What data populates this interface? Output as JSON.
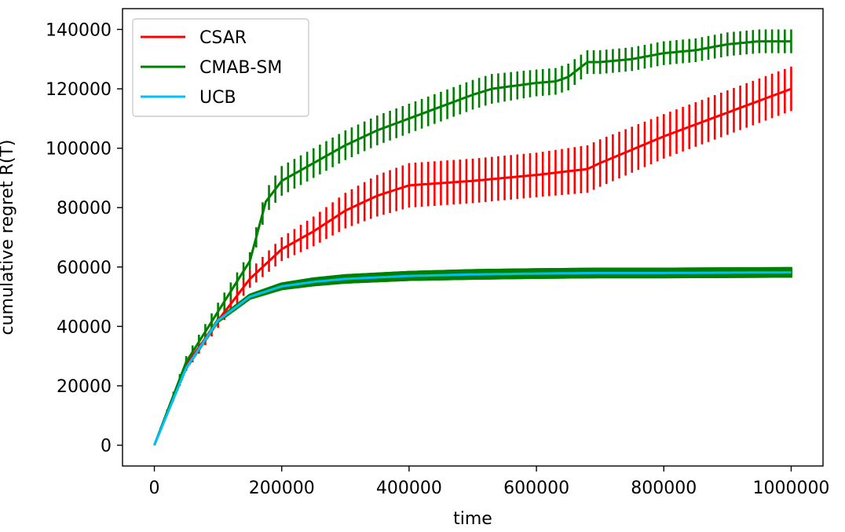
{
  "chart_data": {
    "type": "line",
    "title": "",
    "xlabel": "time",
    "ylabel": "cumulative regret R(T)",
    "xlim": [
      -50000,
      1050000
    ],
    "ylim": [
      -7000,
      147000
    ],
    "xticks": [
      0,
      200000,
      400000,
      600000,
      800000,
      1000000
    ],
    "xtick_labels": [
      "0",
      "200000",
      "400000",
      "600000",
      "800000",
      "1000000"
    ],
    "yticks": [
      0,
      20000,
      40000,
      60000,
      80000,
      100000,
      120000,
      140000
    ],
    "ytick_labels": [
      "0",
      "20000",
      "40000",
      "60000",
      "80000",
      "100000",
      "120000",
      "140000"
    ],
    "grid": false,
    "legend": "top-left",
    "series": [
      {
        "name": "CSAR",
        "color": "#ff0000",
        "x": [
          0,
          50000,
          100000,
          150000,
          200000,
          250000,
          300000,
          350000,
          400000,
          500000,
          600000,
          680000,
          700000,
          800000,
          900000,
          1000000
        ],
        "y": [
          0,
          27000,
          42000,
          56000,
          66000,
          72000,
          79000,
          84000,
          87500,
          89000,
          91000,
          93000,
          95000,
          104000,
          112000,
          120000
        ],
        "err": [
          0,
          2000,
          2500,
          3000,
          4000,
          5000,
          6000,
          7000,
          7500,
          7500,
          7500,
          8000,
          8000,
          7500,
          7500,
          7500
        ]
      },
      {
        "name": "CMAB-SM",
        "color": "#008000",
        "x": [
          0,
          50000,
          100000,
          150000,
          175000,
          200000,
          250000,
          300000,
          350000,
          400000,
          450000,
          500000,
          530000,
          600000,
          630000,
          650000,
          680000,
          700000,
          750000,
          800000,
          850000,
          900000,
          950000,
          1000000
        ],
        "y": [
          0,
          28000,
          45000,
          62000,
          82000,
          89000,
          95000,
          101000,
          106000,
          110000,
          114000,
          118000,
          120000,
          122000,
          122500,
          124000,
          129000,
          129000,
          130000,
          132000,
          133000,
          135000,
          136000,
          136000
        ],
        "err": [
          0,
          2000,
          3000,
          3000,
          4000,
          5000,
          5000,
          5000,
          5000,
          5000,
          5000,
          5000,
          5000,
          4500,
          4500,
          4500,
          4000,
          4000,
          4000,
          4000,
          4000,
          4000,
          4000,
          4000
        ]
      },
      {
        "name": "UCB",
        "color": "#00bfff",
        "band_color": "#008000",
        "x": [
          0,
          50000,
          100000,
          150000,
          200000,
          250000,
          300000,
          400000,
          500000,
          600000,
          700000,
          800000,
          900000,
          1000000
        ],
        "y": [
          0,
          26000,
          42000,
          50000,
          53500,
          55000,
          56000,
          57000,
          57500,
          57800,
          58000,
          58000,
          58100,
          58200
        ],
        "err": [
          0,
          500,
          800,
          1000,
          1300,
          1500,
          1600,
          1700,
          1800,
          1800,
          1800,
          1800,
          1800,
          1800
        ]
      }
    ]
  }
}
